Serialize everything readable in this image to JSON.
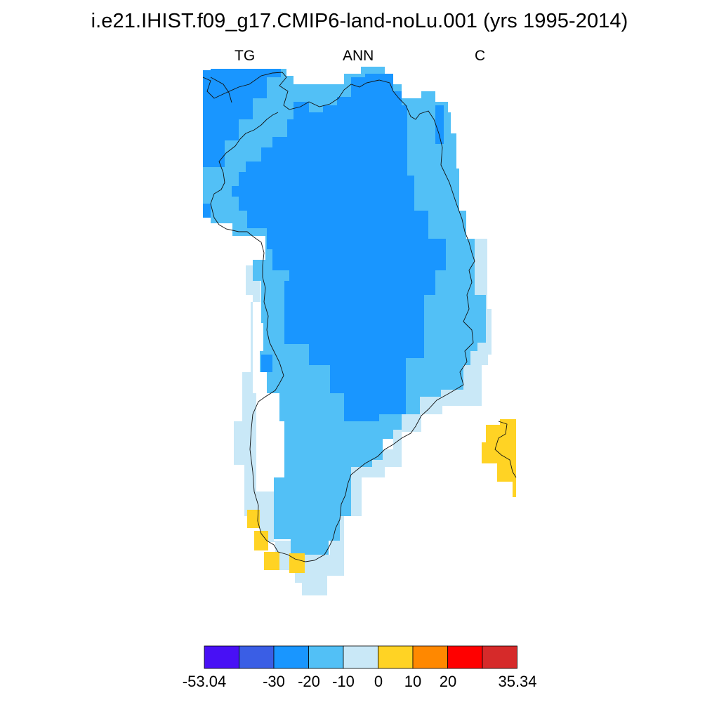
{
  "title": "i.e21.IHIST.f09_g17.CMIP6-land-noLu.001 (yrs 1995-2014)",
  "subtitles": {
    "left": "TG",
    "center": "ANN",
    "right": "C"
  },
  "colors": {
    "c1": "#4810f5",
    "c2": "#3a5ee5",
    "c3": "#1996ff",
    "c4": "#52c0f6",
    "c5": "#c9e8f7",
    "c6": "#ffd324",
    "c7": "#ff8800",
    "c8": "#ff0000",
    "c9": "#d62a2a",
    "coast": "#111111",
    "outline": "#000000"
  },
  "colorbar": {
    "colors": [
      "#4810f5",
      "#3a5ee5",
      "#1996ff",
      "#52c0f6",
      "#c9e8f7",
      "#ffd324",
      "#ff8800",
      "#ff0000",
      "#d62a2a"
    ],
    "tick_labels": [
      "-53.04",
      "-30",
      "-20",
      "-10",
      "0",
      "10",
      "20",
      "35.34"
    ]
  }
}
